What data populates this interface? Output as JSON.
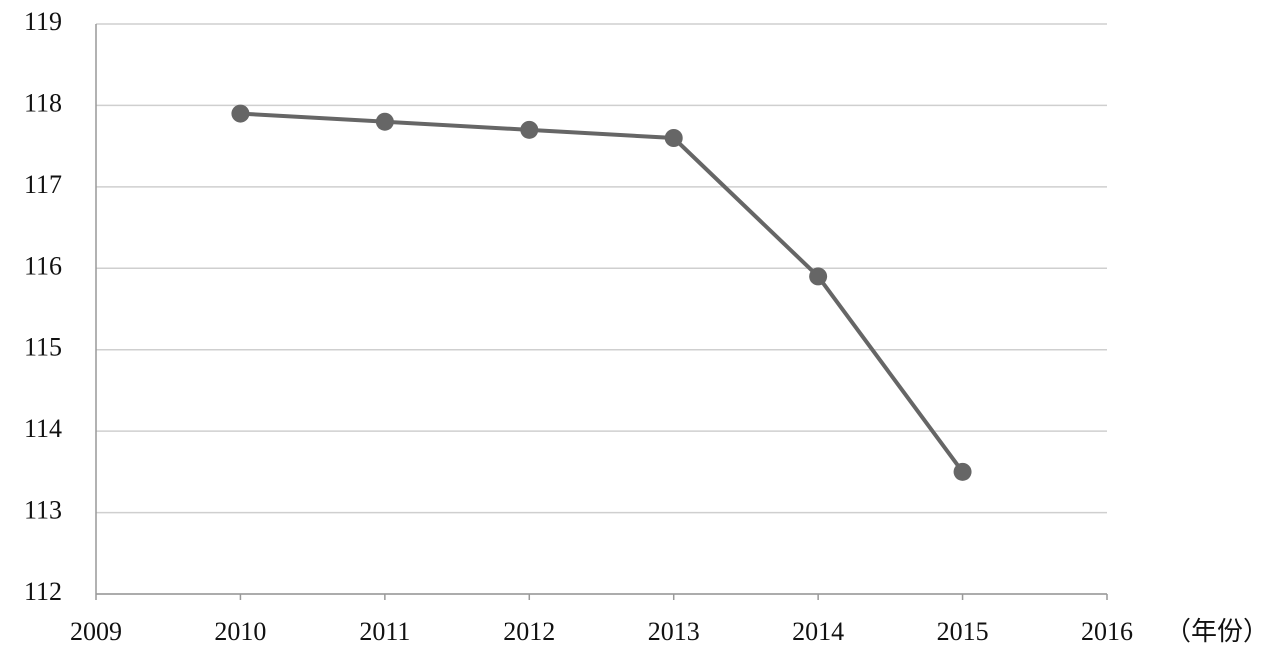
{
  "chart_data": {
    "type": "line",
    "x_label": "（年份）",
    "x": [
      2010,
      2011,
      2012,
      2013,
      2014,
      2015
    ],
    "series": [
      {
        "color": "#666666",
        "values": [
          117.9,
          117.8,
          117.7,
          117.6,
          115.9,
          113.5
        ]
      }
    ],
    "xlim": [
      2009,
      2016
    ],
    "xticks": [
      2009,
      2010,
      2011,
      2012,
      2013,
      2014,
      2015,
      2016
    ],
    "ylim": [
      112,
      119
    ],
    "yticks": [
      112,
      113,
      114,
      115,
      116,
      117,
      118,
      119
    ],
    "grid": true
  }
}
